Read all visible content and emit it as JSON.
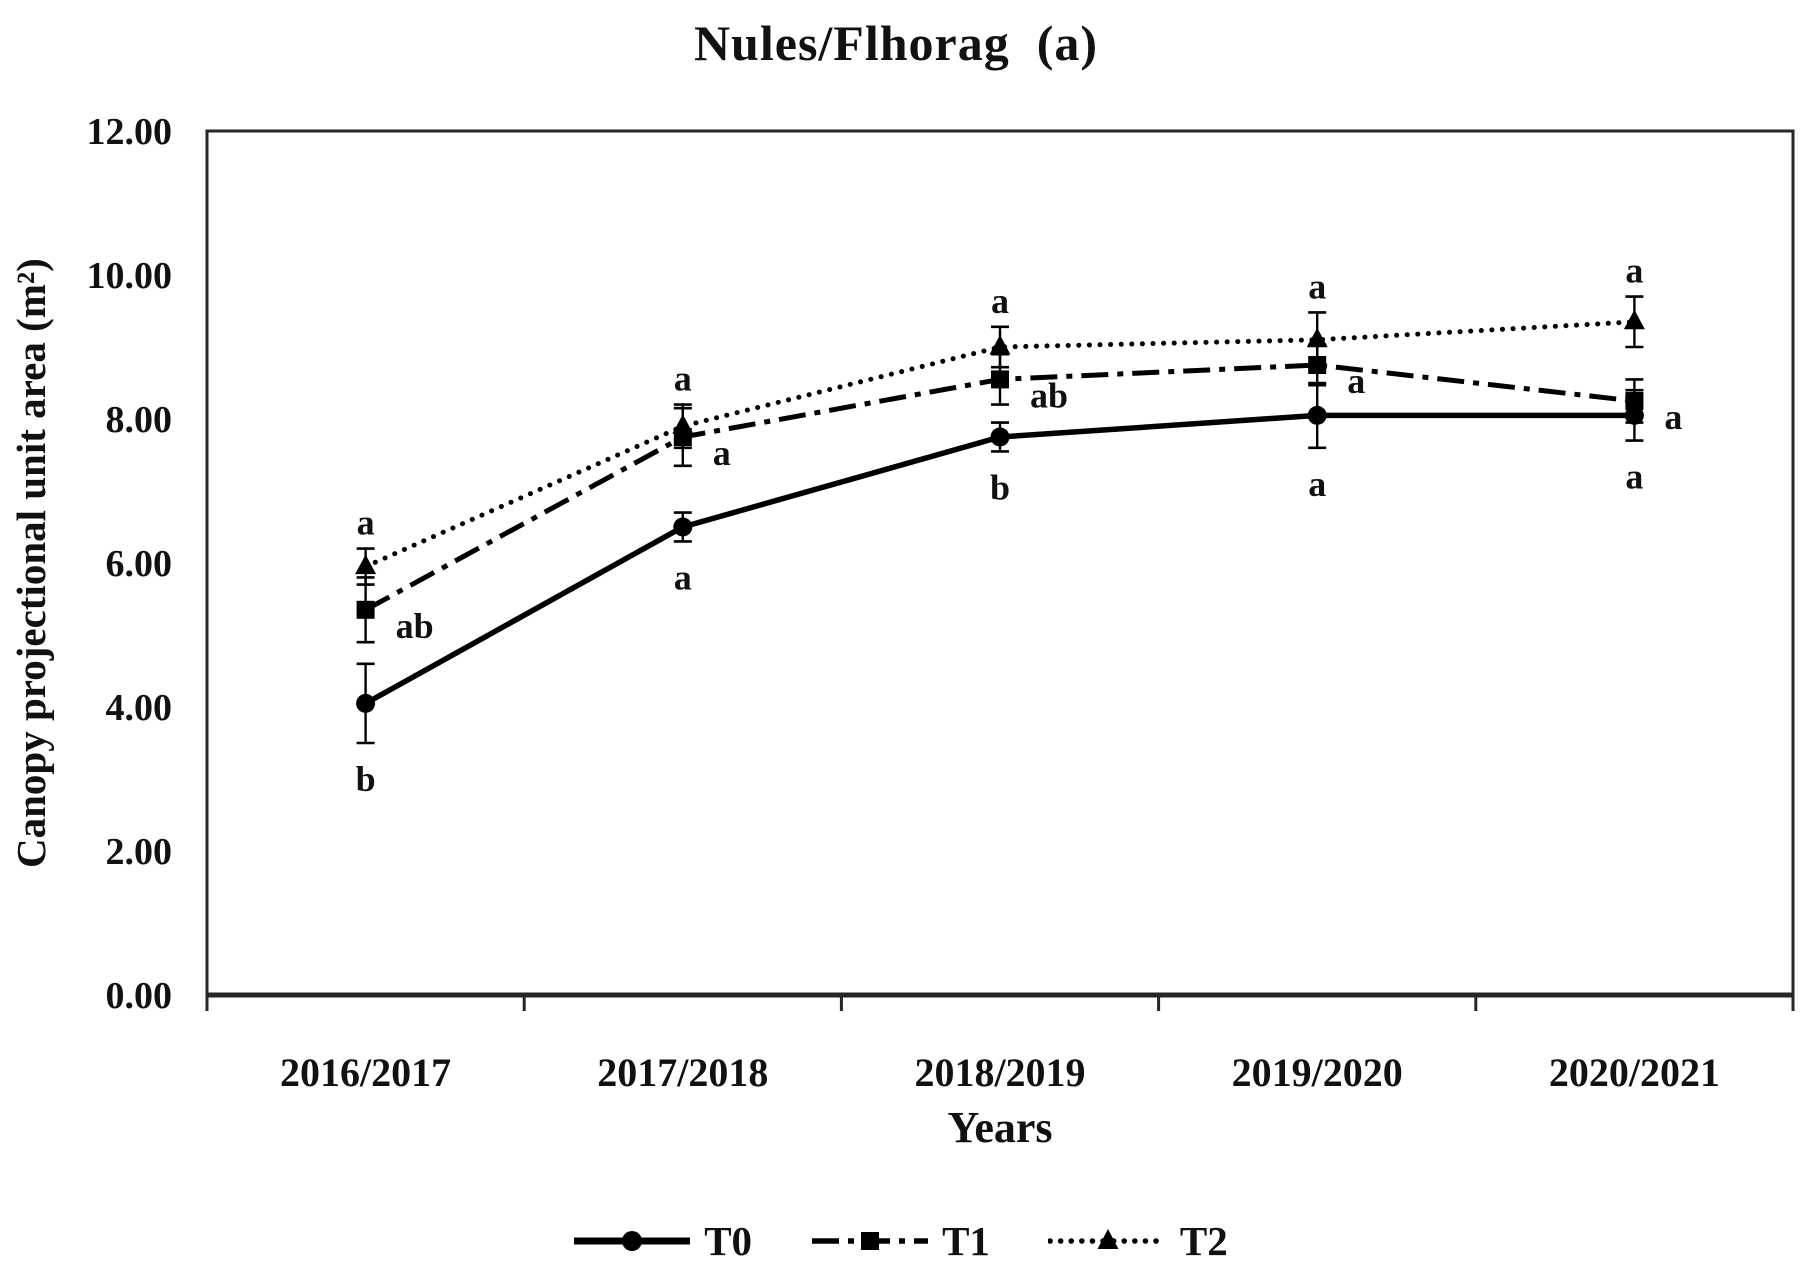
{
  "figure": {
    "panel_tag": "(a)"
  },
  "chart_data": {
    "type": "line",
    "title": "Nules/Flhorag  (a)",
    "xlabel": "Years",
    "ylabel": "Canopy projectional unit area (m²)",
    "categories": [
      "2016/2017",
      "2017/2018",
      "2018/2019",
      "2019/2020",
      "2020/2021"
    ],
    "ylim": [
      0,
      12
    ],
    "ytick_labels": [
      "0.00",
      "2.00",
      "4.00",
      "6.00",
      "8.00",
      "10.00",
      "12.00"
    ],
    "grid": false,
    "legend_position": "bottom",
    "line_color": "#000000",
    "frame_color": "#262626",
    "series": [
      {
        "name": "T0",
        "line_style": "solid",
        "marker": "circle",
        "values": [
          4.05,
          6.5,
          7.75,
          8.05,
          8.05
        ],
        "errors": [
          0.55,
          0.2,
          0.2,
          0.45,
          0.35
        ],
        "sig_letters": [
          "b",
          "a",
          "b",
          "a",
          "a"
        ],
        "letter_placement": "below"
      },
      {
        "name": "T1",
        "line_style": "dash-dot",
        "marker": "square",
        "values": [
          5.35,
          7.75,
          8.55,
          8.75,
          8.25
        ],
        "errors": [
          0.45,
          0.4,
          0.35,
          0.28,
          0.3
        ],
        "sig_letters": [
          "ab",
          "a",
          "ab",
          "a",
          "a"
        ],
        "letter_placement": "right"
      },
      {
        "name": "T2",
        "line_style": "dotted",
        "marker": "triangle",
        "values": [
          5.95,
          7.9,
          9.0,
          9.1,
          9.35
        ],
        "errors": [
          0.25,
          0.3,
          0.28,
          0.38,
          0.35
        ],
        "sig_letters": [
          "a",
          "a",
          "a",
          "a",
          "a"
        ],
        "letter_placement": "above"
      }
    ]
  }
}
